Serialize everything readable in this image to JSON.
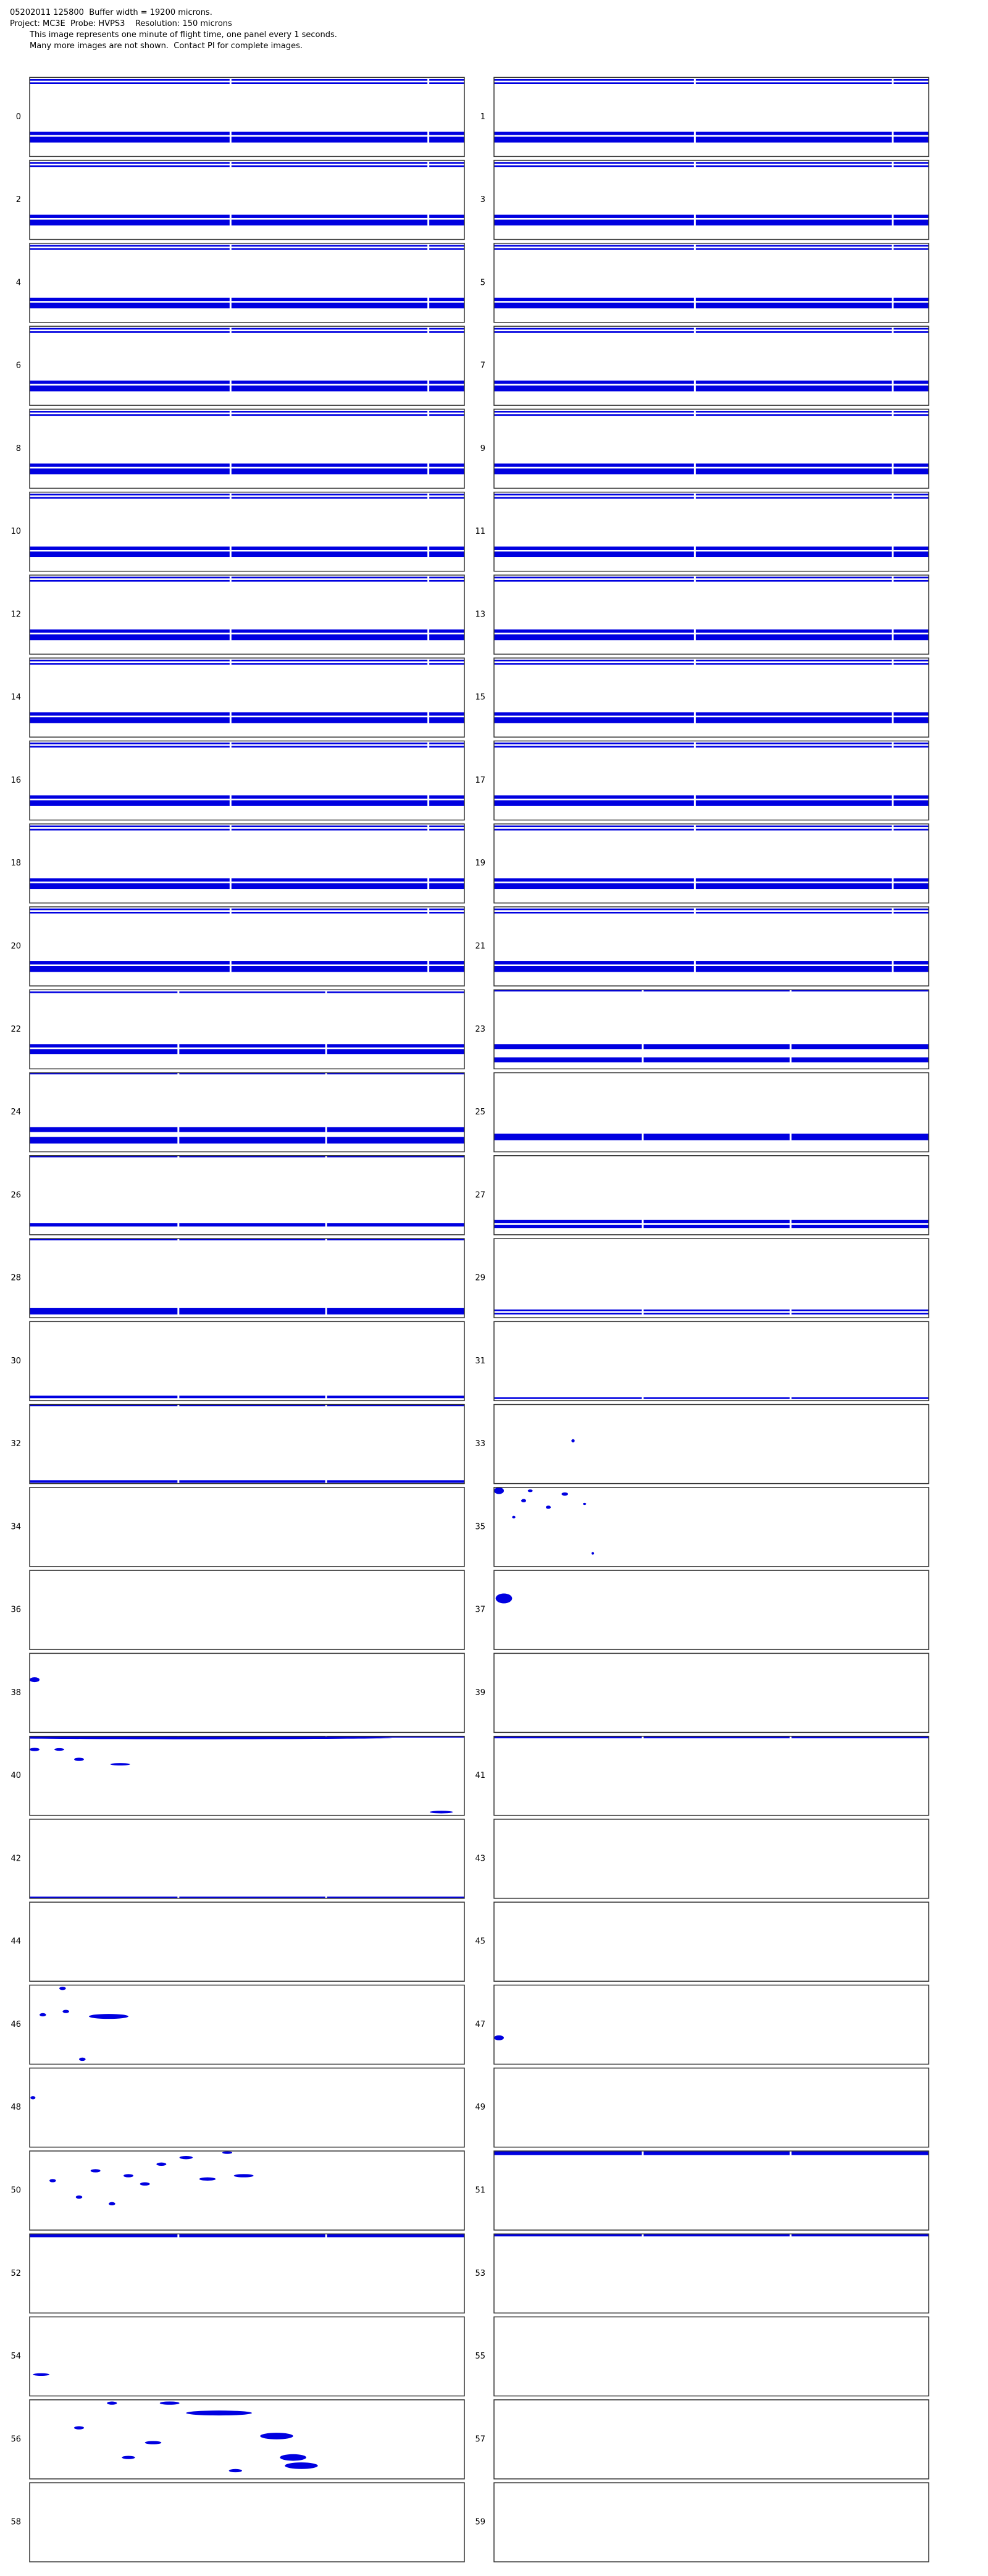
{
  "header": {
    "line1": "05202011 125800  Buffer width = 19200 microns.",
    "line2": "Project: MC3E  Probe: HVPS3    Resolution: 150 microns",
    "line3": "This image represents one minute of flight time, one panel every 1 seconds.",
    "line4": "Many more images are not shown.  Contact PI for complete images."
  },
  "panels": [
    "0",
    "1",
    "2",
    "3",
    "4",
    "5",
    "6",
    "7",
    "8",
    "9",
    "10",
    "11",
    "12",
    "13",
    "14",
    "15",
    "16",
    "17",
    "18",
    "19",
    "20",
    "21",
    "22",
    "23",
    "24",
    "25",
    "26",
    "27",
    "28",
    "29",
    "30",
    "31",
    "32",
    "33",
    "34",
    "35",
    "36",
    "37",
    "38",
    "39",
    "40",
    "41",
    "42",
    "43",
    "44",
    "45",
    "46",
    "47",
    "48",
    "49",
    "50",
    "51",
    "52",
    "53",
    "54",
    "55",
    "56",
    "57",
    "58",
    "59"
  ]
}
